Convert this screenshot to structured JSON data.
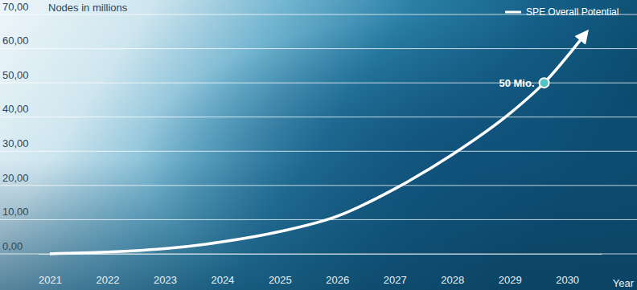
{
  "chart_data": {
    "type": "line",
    "y_label": "Nodes in millions",
    "x_label": "Year",
    "x": [
      2021,
      2022,
      2023,
      2024,
      2025,
      2026,
      2027,
      2028,
      2029,
      2029.6,
      2030.3
    ],
    "series": [
      {
        "name": "SPE Overall Potential",
        "color": "#ffffff",
        "line_style": "solid",
        "values": [
          0,
          0.5,
          1.5,
          3.5,
          6.5,
          11,
          19,
          29,
          41,
          50,
          64
        ]
      }
    ],
    "annotations": [
      {
        "text": "50 Mio.",
        "x": 2029.6,
        "y": 50
      }
    ],
    "xlim": [
      2020.8,
      2030.6
    ],
    "xticks": [
      2021,
      2022,
      2023,
      2024,
      2025,
      2026,
      2027,
      2028,
      2029,
      2030
    ],
    "ylim": [
      0,
      70
    ],
    "yticks": [
      {
        "value": 0,
        "label": "0,00"
      },
      {
        "value": 10,
        "label": "10,00"
      },
      {
        "value": 20,
        "label": "20,00"
      },
      {
        "value": 30,
        "label": "30,00"
      },
      {
        "value": 40,
        "label": "40,00"
      },
      {
        "value": 50,
        "label": "50,00"
      },
      {
        "value": 60,
        "label": "60,00"
      },
      {
        "value": 70,
        "label": "70,00"
      }
    ],
    "grid": true,
    "legend": "top-right"
  }
}
